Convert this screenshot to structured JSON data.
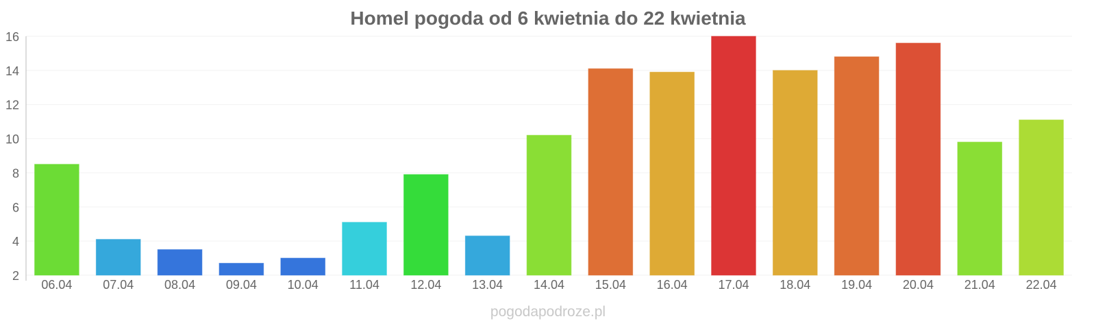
{
  "chart_data": {
    "type": "bar",
    "title": "Homel pogoda od 6 kwietnia do 22 kwietnia",
    "xlabel": "",
    "ylabel": "",
    "ylim": [
      2,
      16
    ],
    "yticks": [
      2,
      4,
      6,
      8,
      10,
      12,
      14,
      16
    ],
    "grid": true,
    "categories": [
      "06.04",
      "07.04",
      "08.04",
      "09.04",
      "10.04",
      "11.04",
      "12.04",
      "13.04",
      "14.04",
      "15.04",
      "16.04",
      "17.04",
      "18.04",
      "19.04",
      "20.04",
      "21.04",
      "22.04"
    ],
    "values": [
      8.5,
      4.1,
      3.5,
      2.7,
      3.0,
      5.1,
      7.9,
      4.3,
      10.2,
      14.1,
      13.9,
      16.0,
      14.0,
      14.8,
      15.6,
      9.8,
      11.1
    ],
    "colors": [
      "#6cdc35",
      "#35a8dc",
      "#3575dc",
      "#3575dc",
      "#3575dc",
      "#35cfdc",
      "#35dc3a",
      "#35a8dc",
      "#8ade35",
      "#de6f35",
      "#deaa35",
      "#dc3535",
      "#deaa35",
      "#de6f35",
      "#dc5035",
      "#8ade35",
      "#acdc35"
    ]
  },
  "watermark": "pogodapodroze.pl"
}
